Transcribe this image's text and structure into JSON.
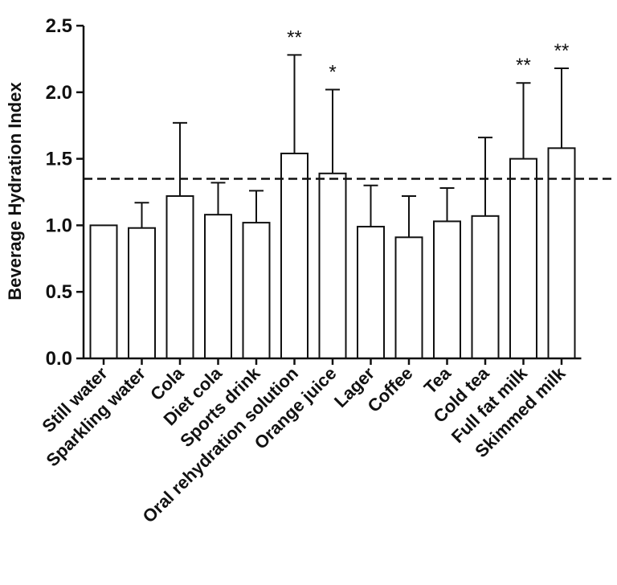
{
  "chart_data": {
    "type": "bar",
    "title": "",
    "xlabel": "",
    "ylabel": "Beverage Hydration Index",
    "ylim": [
      0,
      2.5
    ],
    "yticks": [
      "0.0",
      "0.5",
      "1.0",
      "1.5",
      "2.0",
      "2.5"
    ],
    "categories": [
      "Still water",
      "Sparkling water",
      "Cola",
      "Diet cola",
      "Sports drink",
      "Oral rehydration solution",
      "Orange juice",
      "Lager",
      "Coffee",
      "Tea",
      "Cold tea",
      "Full fat milk",
      "Skimmed milk"
    ],
    "values": [
      1.0,
      0.98,
      1.22,
      1.08,
      1.02,
      1.54,
      1.39,
      0.99,
      0.91,
      1.03,
      1.07,
      1.5,
      1.58
    ],
    "error_upper": [
      0,
      0.19,
      0.55,
      0.24,
      0.24,
      0.74,
      0.63,
      0.31,
      0.31,
      0.25,
      0.59,
      0.57,
      0.6
    ],
    "significance": [
      "",
      "",
      "",
      "",
      "",
      "**",
      "*",
      "",
      "",
      "",
      "",
      "**",
      "**"
    ],
    "reference_line": {
      "y": 1.35,
      "style": "dashed"
    },
    "colors": {
      "bar_fill": "#ffffff",
      "stroke": "#111111"
    }
  }
}
